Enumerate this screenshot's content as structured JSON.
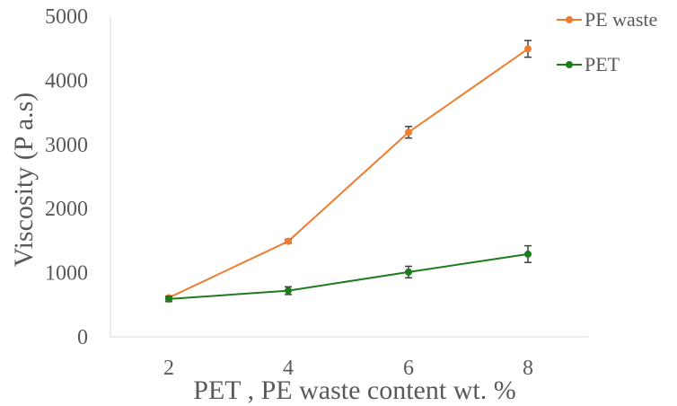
{
  "chart_data": {
    "type": "line",
    "title": "",
    "xlabel": "PET , PE waste content wt. %",
    "ylabel": "Viscosity (P a.s)",
    "x": [
      2,
      4,
      6,
      8
    ],
    "ylim": [
      0,
      5000
    ],
    "yticks": [
      0,
      1000,
      2000,
      3000,
      4000,
      5000
    ],
    "grid": false,
    "legend_position": "top-right",
    "series": [
      {
        "name": "PE waste",
        "color": "#ED7D31",
        "values": [
          610,
          1490,
          3190,
          4490
        ],
        "errors": [
          20,
          30,
          90,
          130
        ]
      },
      {
        "name": "PET",
        "color": "#1E7B1E",
        "values": [
          590,
          720,
          1010,
          1290
        ],
        "errors": [
          40,
          60,
          90,
          130
        ]
      }
    ]
  }
}
